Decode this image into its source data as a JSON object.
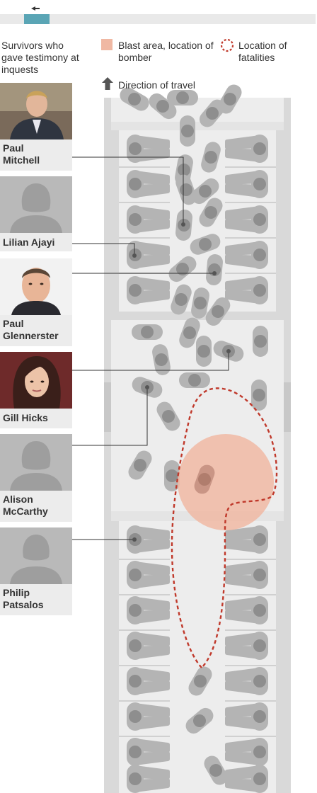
{
  "heading": "Survivors who gave testimony at inquests",
  "legend": {
    "blast_label": "Blast area, location of bomber",
    "blast_color": "#f0b8a3",
    "fatalities_label": "Location of fatalities",
    "fatalities_color": "#c0392b",
    "direction_label": "Direction of travel",
    "direction_icon": "arrow-up-icon"
  },
  "survivors": [
    {
      "name": "Paul Mitchell",
      "line1": "Paul",
      "line2": "Mitchell",
      "photo": "photo"
    },
    {
      "name": "Lilian Ajayi",
      "line1": "Lilian Ajayi",
      "line2": "",
      "photo": "silhouette"
    },
    {
      "name": "Paul Glennerster",
      "line1": "Paul",
      "line2": "Glennerster",
      "photo": "photo"
    },
    {
      "name": "Gill Hicks",
      "line1": "Gill Hicks",
      "line2": "",
      "photo": "photo"
    },
    {
      "name": "Alison McCarthy",
      "line1": "Alison",
      "line2": "McCarthy",
      "photo": "silhouette"
    },
    {
      "name": "Philip Patsalos",
      "line1": "Philip",
      "line2": "Patsalos",
      "photo": "silhouette"
    }
  ],
  "colors": {
    "carriage_wall": "#d9d9d9",
    "floor": "#ededed",
    "passenger": "#b4b4b4",
    "passenger_head": "#8e8e8e",
    "leader_line": "#333333",
    "photo_bg": "#b9b9b9"
  }
}
